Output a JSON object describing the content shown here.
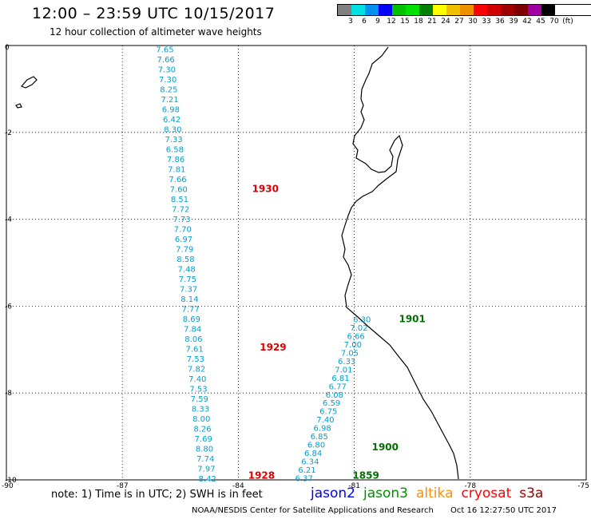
{
  "header": {
    "title": "12:00 – 23:59 UTC 10/15/2017",
    "subtitle": "12 hour collection of altimeter wave heights"
  },
  "color_scale": {
    "labels": [
      "3",
      "6",
      "9",
      "12",
      "15",
      "18",
      "21",
      "24",
      "27",
      "30",
      "33",
      "36",
      "39",
      "42",
      "45",
      "70",
      "(ft)"
    ],
    "colors": [
      "#808080",
      "#00e0e0",
      "#0090f0",
      "#0000ff",
      "#00c000",
      "#00e000",
      "#008000",
      "#ffff00",
      "#f0c000",
      "#f09000",
      "#ff0000",
      "#d00000",
      "#a00000",
      "#800000",
      "#a000a0",
      "#000000"
    ]
  },
  "axes": {
    "lon_labels": [
      "-90",
      "-87",
      "-84",
      "-81",
      "-78",
      "-75"
    ],
    "lat_labels": [
      "0",
      "-2",
      "-4",
      "-6",
      "-8",
      "-10"
    ]
  },
  "map_data": {
    "track_west": {
      "values": [
        "7.65",
        "7.66",
        "7.30",
        "7.30",
        "8.25",
        "7.21",
        "6.98",
        "6.42",
        "8.30",
        "7.33",
        "6.58",
        "7.86",
        "7.81",
        "7.66",
        "7.60",
        "8.51",
        "7.72",
        "7.73",
        "7.70",
        "6.97",
        "7.79",
        "8.58",
        "7.48",
        "7.75",
        "7.37",
        "8.14",
        "7.77",
        "8.69",
        "7.84",
        "8.06",
        "7.61",
        "7.53",
        "7.82",
        "7.40",
        "7.53",
        "7.59",
        "8.33",
        "8.00",
        "8.26",
        "7.69",
        "8.80",
        "7.74",
        "7.97",
        "8.42"
      ],
      "lat_start": -0.08,
      "lat_end": -9.96,
      "lon_start": -85.9,
      "lon_end": -84.8,
      "color": "#00a0d0"
    },
    "track_east": {
      "values": [
        "6.30",
        "7.02",
        "6.66",
        "7.00",
        "7.05",
        "6.33",
        "7.01",
        "6.81",
        "6.77",
        "6.08",
        "6.59",
        "6.75",
        "7.40",
        "6.98",
        "6.85",
        "6.80",
        "6.84",
        "6.34",
        "6.21",
        "6.37"
      ],
      "lat_start": -6.3,
      "lat_end": -9.95,
      "lon_start": -80.8,
      "lon_end": -82.3,
      "color": "#00a0d0"
    },
    "pass_times": [
      {
        "text": "1930",
        "lat": -3.3,
        "lon": -83.3,
        "color": "#e00000"
      },
      {
        "text": "1929",
        "lat": -6.95,
        "lon": -83.1,
        "color": "#e00000"
      },
      {
        "text": "1928",
        "lat": -9.9,
        "lon": -83.4,
        "color": "#e00000"
      },
      {
        "text": "1901",
        "lat": -6.3,
        "lon": -79.5,
        "color": "#007000"
      },
      {
        "text": "1900",
        "lat": -9.25,
        "lon": -80.2,
        "color": "#007000"
      },
      {
        "text": "1859",
        "lat": -9.9,
        "lon": -80.7,
        "color": "#007000"
      }
    ]
  },
  "note": "note: 1) Time is in UTC; 2) SWH is in feet",
  "satellites": [
    {
      "name": "jason2",
      "color": "#0000ff"
    },
    {
      "name": "jason3",
      "color": "#009000"
    },
    {
      "name": "altika",
      "color": "#ff9000"
    },
    {
      "name": "cryosat",
      "color": "#ff0000"
    },
    {
      "name": "s3a",
      "color": "#a00000"
    }
  ],
  "footer": {
    "credit": "NOAA/NESDIS Center for Satellite Applications and Research",
    "timestamp": "Oct 16 12:27:50 UTC 2017"
  }
}
